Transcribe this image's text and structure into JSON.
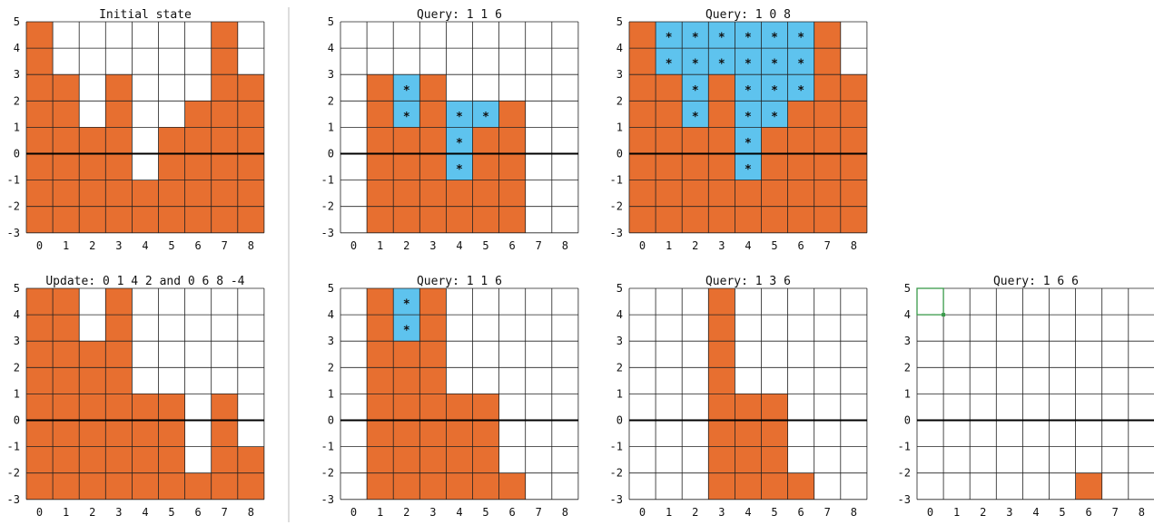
{
  "colors": {
    "filled": "#e76f30",
    "water": "#5ec3ee",
    "grid": "#222222",
    "axis_zero": "#000000",
    "separator": "#bbbbbb",
    "selection": "#3a9a4a"
  },
  "x_labels": [
    "0",
    "1",
    "2",
    "3",
    "4",
    "5",
    "6",
    "7",
    "8"
  ],
  "y_labels": [
    "5",
    "4",
    "3",
    "2",
    "1",
    "0",
    "-1",
    "-2",
    "-3"
  ],
  "star_glyph": "*",
  "panels": [
    {
      "id": "initial",
      "title": "Initial state",
      "ranges": [
        [
          -3,
          5
        ],
        [
          -3,
          3
        ],
        [
          -3,
          1
        ],
        [
          -3,
          3
        ],
        [
          -3,
          -1
        ],
        [
          -3,
          1
        ],
        [
          -3,
          2
        ],
        [
          -3,
          5
        ],
        [
          -3,
          3
        ]
      ],
      "water": []
    },
    {
      "id": "query-116-a",
      "title": "Query: 1 1 6",
      "ranges": [
        null,
        [
          -3,
          3
        ],
        [
          -3,
          1
        ],
        [
          -3,
          3
        ],
        [
          -3,
          -1
        ],
        [
          -3,
          1
        ],
        [
          -3,
          2
        ],
        null,
        null
      ],
      "water": [
        [
          2,
          1,
          3
        ],
        [
          4,
          -1,
          2
        ],
        [
          5,
          1,
          2
        ]
      ]
    },
    {
      "id": "query-108",
      "title": "Query: 1 0 8",
      "ranges": [
        [
          -3,
          5
        ],
        [
          -3,
          3
        ],
        [
          -3,
          1
        ],
        [
          -3,
          3
        ],
        [
          -3,
          -1
        ],
        [
          -3,
          1
        ],
        [
          -3,
          2
        ],
        [
          -3,
          5
        ],
        [
          -3,
          3
        ]
      ],
      "water": [
        [
          1,
          3,
          5
        ],
        [
          2,
          1,
          5
        ],
        [
          3,
          3,
          5
        ],
        [
          4,
          -1,
          5
        ],
        [
          5,
          1,
          5
        ],
        [
          6,
          2,
          5
        ]
      ]
    },
    {
      "id": "update",
      "title": "Update: 0 1 4 2 and 0 6 8 -4",
      "ranges": [
        [
          -3,
          5
        ],
        [
          -3,
          5
        ],
        [
          -3,
          3
        ],
        [
          -3,
          5
        ],
        [
          -3,
          1
        ],
        [
          -3,
          1
        ],
        [
          -3,
          -2
        ],
        [
          -3,
          1
        ],
        [
          -3,
          -1
        ]
      ],
      "water": []
    },
    {
      "id": "query-116-b",
      "title": "Query: 1 1 6",
      "ranges": [
        null,
        [
          -3,
          5
        ],
        [
          -3,
          3
        ],
        [
          -3,
          5
        ],
        [
          -3,
          1
        ],
        [
          -3,
          1
        ],
        [
          -3,
          -2
        ],
        null,
        null
      ],
      "water": [
        [
          2,
          3,
          5
        ]
      ]
    },
    {
      "id": "query-136",
      "title": "Query: 1 3 6",
      "ranges": [
        null,
        null,
        null,
        [
          -3,
          5
        ],
        [
          -3,
          1
        ],
        [
          -3,
          1
        ],
        [
          -3,
          -2
        ],
        null,
        null
      ],
      "water": []
    },
    {
      "id": "query-166",
      "title": "Query: 1 6 6",
      "ranges": [
        null,
        null,
        null,
        null,
        null,
        null,
        [
          -3,
          -2
        ],
        null,
        null
      ],
      "water": []
    }
  ]
}
